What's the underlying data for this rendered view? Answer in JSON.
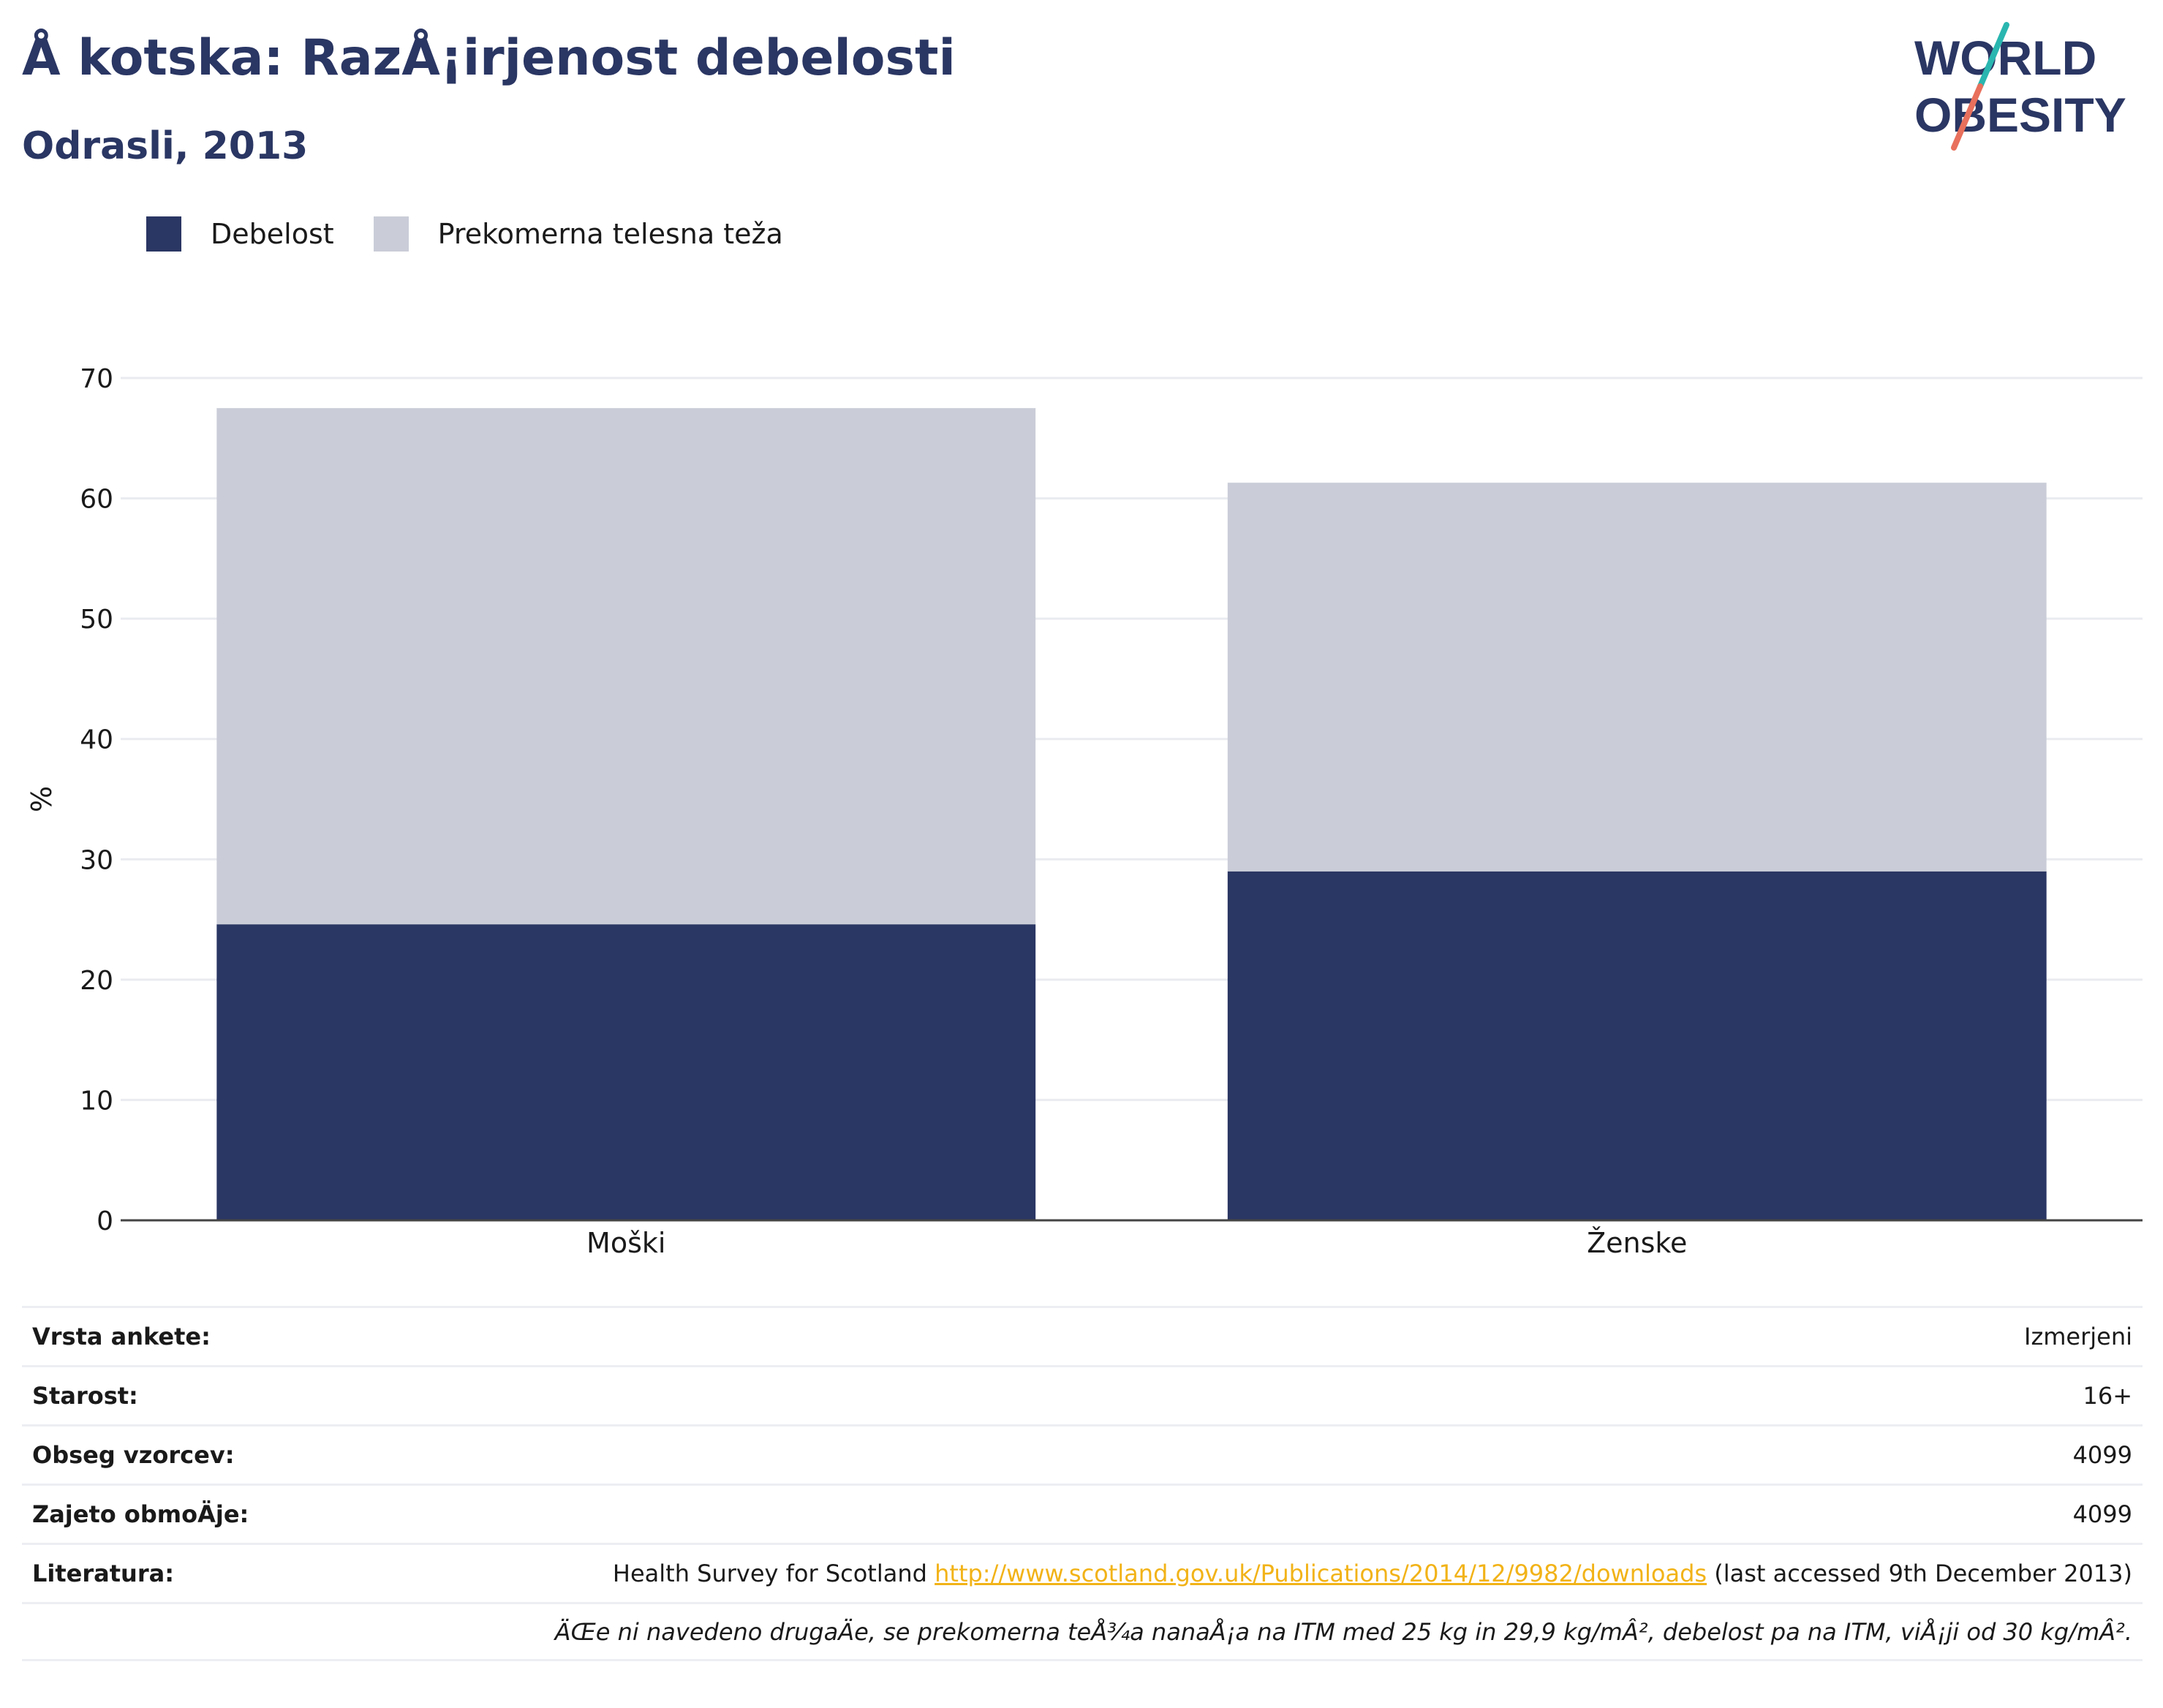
{
  "header": {
    "title": "Å kotska: RazÅ¡irjenost debelosti",
    "subtitle": "Odrasli, 2013"
  },
  "logo": {
    "line1": "WORLD",
    "line2": "OBESITY",
    "colors": {
      "text": "#2a3663",
      "slash_top": "#2ab6b0",
      "slash_bottom": "#e8705c"
    }
  },
  "legend": {
    "items": [
      {
        "label": "Debelost",
        "color": "#2a3663"
      },
      {
        "label": "Prekomerna telesna teža",
        "color": "#cacdd8"
      }
    ]
  },
  "chart_data": {
    "type": "bar",
    "stacked": true,
    "categories": [
      "Moški",
      "Ženske"
    ],
    "series": [
      {
        "name": "Debelost",
        "values": [
          24.6,
          29.0
        ],
        "color": "#2a3663"
      },
      {
        "name": "Prekomerna telesna teža",
        "values": [
          42.9,
          32.3
        ],
        "color": "#cacdd8"
      }
    ],
    "totals": [
      67.5,
      61.3
    ],
    "ylabel": "%",
    "ylim": [
      0,
      70
    ],
    "yticks": [
      0,
      10,
      20,
      30,
      40,
      50,
      60,
      70
    ],
    "grid": true,
    "legend_position": "top-left"
  },
  "info": {
    "rows": [
      {
        "key": "Vrsta ankete:",
        "value": "Izmerjeni"
      },
      {
        "key": "Starost:",
        "value": "16+"
      },
      {
        "key": "Obseg vzorcev:",
        "value": "4099"
      },
      {
        "key": "Zajeto obmoÄje:",
        "value": "4099"
      }
    ],
    "reference": {
      "key": "Literatura:",
      "prefix": "Health Survey for Scotland ",
      "link": "http://www.scotland.gov.uk/Publications/2014/12/9982/downloads",
      "suffix": " (last accessed 9th December 2013)"
    },
    "note": "ÄŒe ni navedeno drugaÄe, se prekomerna teÅ¾a nanaÅ¡a na ITM med 25 kg in 29,9 kg/mÂ², debelost pa na ITM, viÅ¡ji od 30 kg/mÂ²."
  }
}
